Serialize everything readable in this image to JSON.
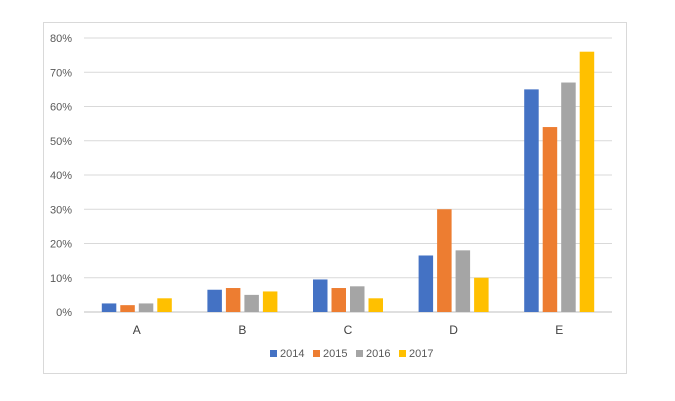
{
  "chart_data": {
    "type": "bar",
    "title": "",
    "xlabel": "",
    "ylabel": "",
    "categories": [
      "A",
      "B",
      "C",
      "D",
      "E"
    ],
    "series": [
      {
        "name": "2014",
        "color": "#4472C4",
        "values": [
          2.5,
          6.5,
          9.5,
          16.5,
          65
        ]
      },
      {
        "name": "2015",
        "color": "#ED7D31",
        "values": [
          2,
          7,
          7,
          30,
          54
        ]
      },
      {
        "name": "2016",
        "color": "#A5A5A5",
        "values": [
          2.5,
          5,
          7.5,
          18,
          67
        ]
      },
      {
        "name": "2017",
        "color": "#FFC000",
        "values": [
          4,
          6,
          4,
          10,
          76
        ]
      }
    ],
    "ylim": [
      0,
      80
    ],
    "yticks": [
      "0%",
      "10%",
      "20%",
      "30%",
      "40%",
      "50%",
      "60%",
      "70%",
      "80%"
    ],
    "y_unit": "%",
    "grid": true,
    "legend_position": "bottom"
  }
}
